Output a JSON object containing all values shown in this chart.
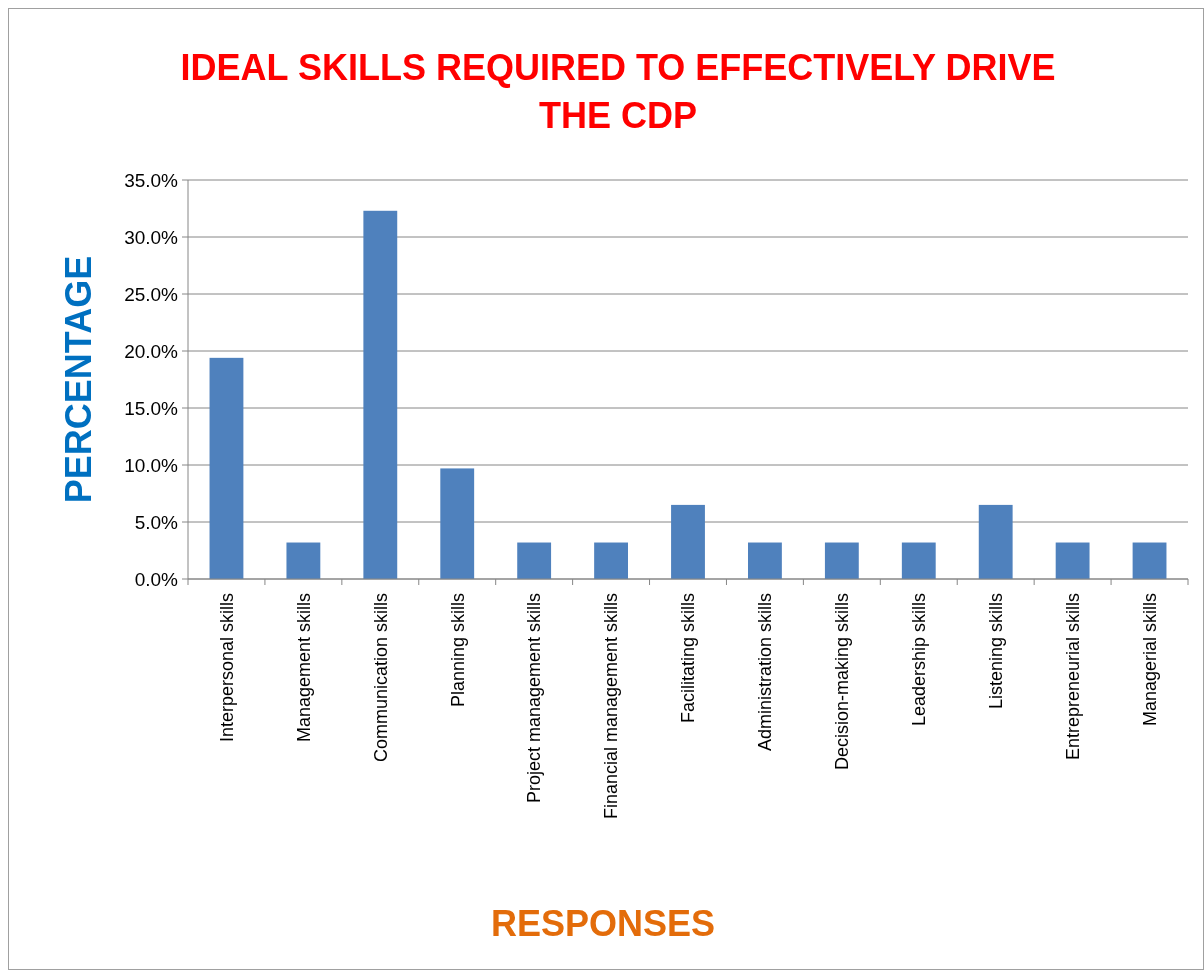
{
  "chart_data": {
    "type": "bar",
    "title": "IDEAL SKILLS REQUIRED TO EFFECTIVELY DRIVE THE CDP",
    "xlabel": "RESPONSES",
    "ylabel": "PERCENTAGE",
    "categories": [
      "Interpersonal skills",
      "Management skills",
      "Communication skills",
      "Planning skills",
      "Project management skills",
      "Financial management skills",
      "Facilitating skills",
      "Administration skills",
      "Decision-making skills",
      "Leadership skills",
      "Listening skills",
      "Entrepreneurial skills",
      "Managerial skills"
    ],
    "values": [
      19.4,
      3.2,
      32.3,
      9.7,
      3.2,
      3.2,
      6.5,
      3.2,
      3.2,
      3.2,
      6.5,
      3.2,
      3.2
    ],
    "color": "#4f81bd",
    "ylim": [
      0,
      35
    ],
    "yticks": [
      {
        "value": 0,
        "label": "0.0%"
      },
      {
        "value": 5,
        "label": "5.0%"
      },
      {
        "value": 10,
        "label": "10.0%"
      },
      {
        "value": 15,
        "label": "15.0%"
      },
      {
        "value": 20,
        "label": "20.0%"
      },
      {
        "value": 25,
        "label": "25.0%"
      },
      {
        "value": 30,
        "label": "30.0%"
      },
      {
        "value": 35,
        "label": "35.0%"
      }
    ],
    "grid": "y"
  }
}
